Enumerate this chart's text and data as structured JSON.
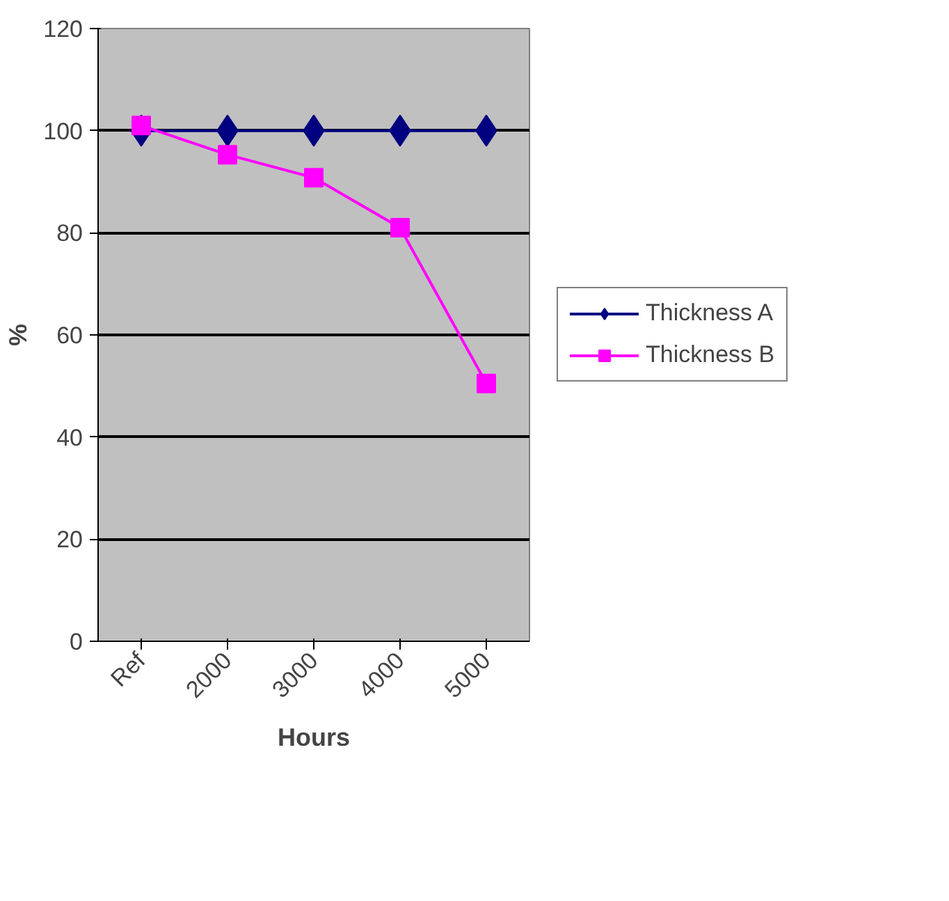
{
  "chart_data": {
    "type": "line",
    "xlabel": "Hours",
    "ylabel": "%",
    "categories": [
      "Ref",
      "2000",
      "3000",
      "4000",
      "5000"
    ],
    "series": [
      {
        "name": "Thickness A",
        "color": "#000080",
        "marker": "diamond",
        "values": [
          100,
          100,
          100,
          100,
          100
        ]
      },
      {
        "name": "Thickness B",
        "color": "#ff00ff",
        "marker": "square",
        "values": [
          101,
          95.3,
          90.8,
          81,
          50.5
        ]
      }
    ],
    "ylim": [
      0,
      120
    ],
    "yticks": [
      0,
      20,
      40,
      60,
      80,
      100,
      120
    ],
    "grid": "y",
    "legend": "right"
  }
}
